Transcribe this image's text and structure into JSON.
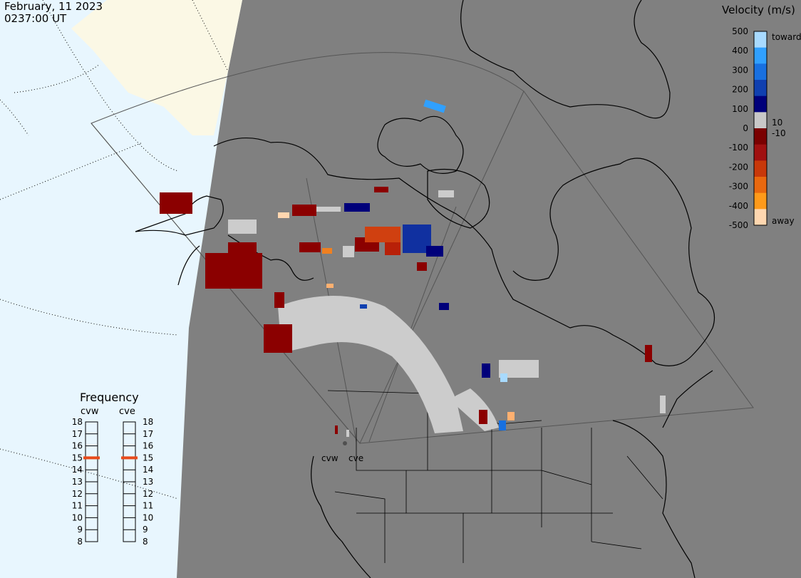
{
  "header": {
    "date": "February, 11 2023",
    "time": "0237:00 UT"
  },
  "legend": {
    "title": "Velocity (m/s)",
    "ticks": [
      "500",
      "400",
      "300",
      "200",
      "100",
      "0",
      "-100",
      "-200",
      "-300",
      "-400",
      "-500"
    ],
    "label_toward": "toward",
    "label_away": "away",
    "label_pos10": "10",
    "label_neg10": "-10",
    "colors": [
      "#ffd7b0",
      "#ff9a1a",
      "#e8680f",
      "#c8380a",
      "#a01010",
      "#7a0000",
      "#c8c8c8",
      "#00007a",
      "#1040b0",
      "#1870e0",
      "#30a0ff",
      "#a8daff"
    ]
  },
  "frequency": {
    "title": "Frequency",
    "radar_w": "cvw",
    "radar_e": "cve",
    "scale": [
      "18",
      "17",
      "16",
      "15",
      "14",
      "13",
      "12",
      "11",
      "10",
      "9",
      "8"
    ],
    "value_w": 15,
    "value_e": 15,
    "marker_color": "#e84a1a"
  },
  "sites": {
    "west": "cvw",
    "east": "cve"
  },
  "colors": {
    "map_bg": "#808080",
    "ocean": "#e8f6fe",
    "land_bright": "#fbf8e5",
    "groundscatter": "#cccccc"
  }
}
